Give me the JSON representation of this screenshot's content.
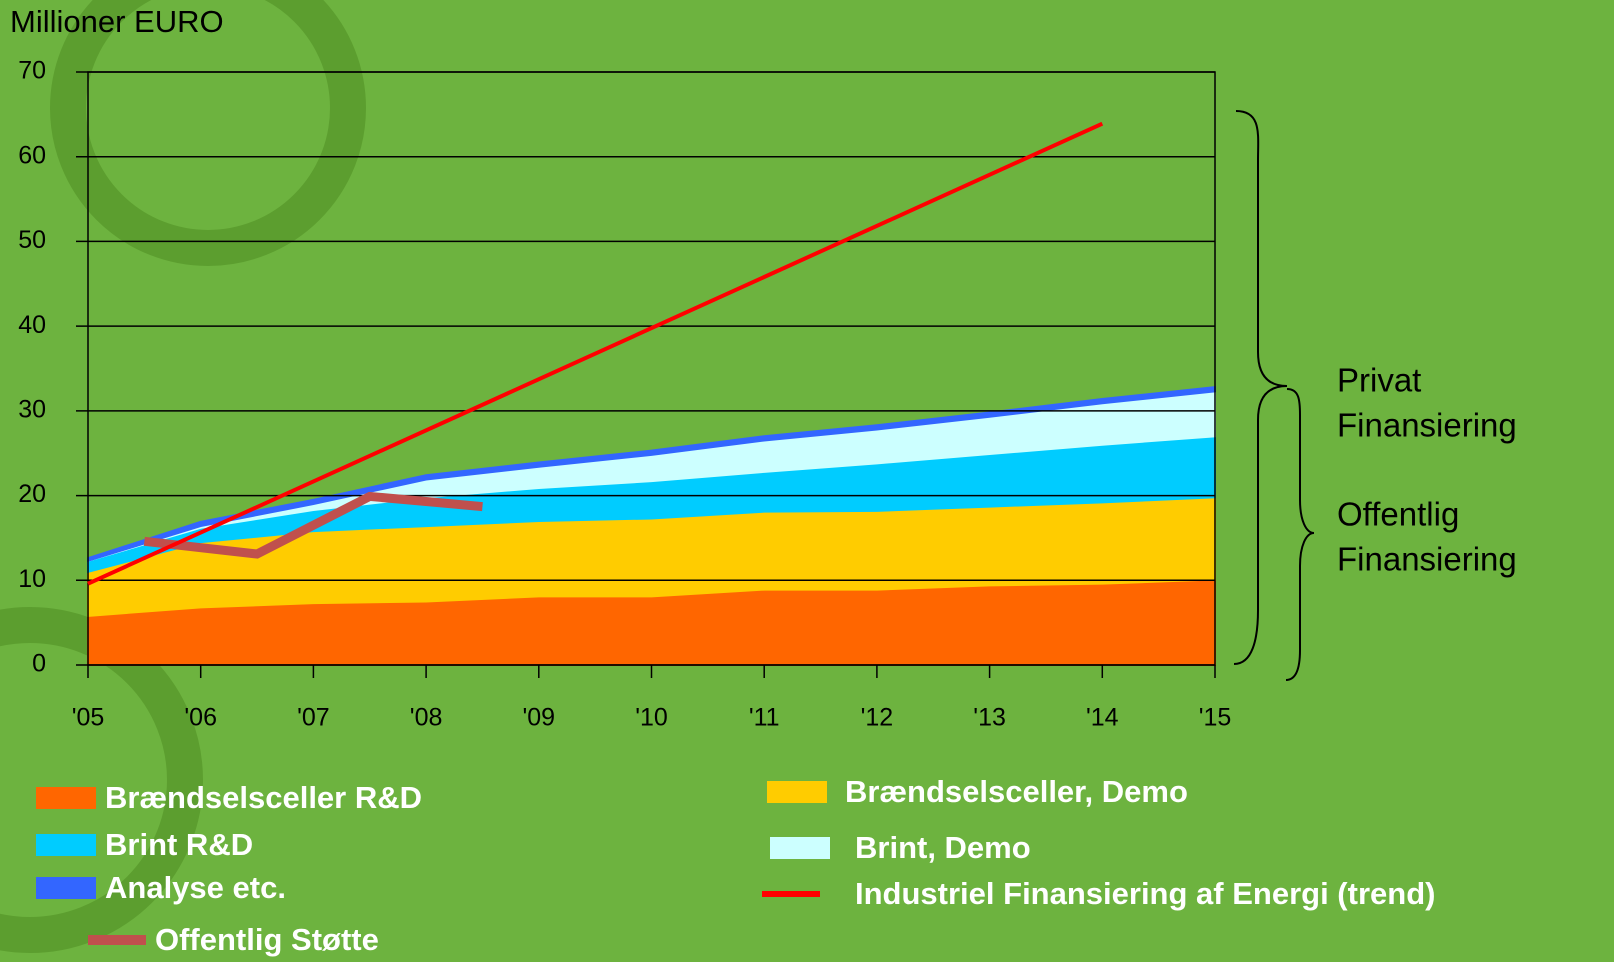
{
  "chart_data": {
    "type": "area",
    "y_label": "Millioner EURO",
    "stacked": true,
    "xlim": [
      2005,
      2015
    ],
    "xticks": [
      {
        "value": 2005,
        "label": "'05"
      },
      {
        "value": 2006,
        "label": "'06"
      },
      {
        "value": 2007,
        "label": "'07"
      },
      {
        "value": 2008,
        "label": "'08"
      },
      {
        "value": 2009,
        "label": "'09"
      },
      {
        "value": 2010,
        "label": "'10"
      },
      {
        "value": 2011,
        "label": "'11"
      },
      {
        "value": 2012,
        "label": "'12"
      },
      {
        "value": 2013,
        "label": "'13"
      },
      {
        "value": 2014,
        "label": "'14"
      },
      {
        "value": 2015,
        "label": "'15"
      }
    ],
    "ylim": [
      0,
      70
    ],
    "yticks": [
      0,
      10,
      20,
      30,
      40,
      50,
      60,
      70
    ],
    "grid": true,
    "x": [
      2005,
      2006,
      2007,
      2008,
      2009,
      2010,
      2011,
      2012,
      2013,
      2014,
      2015
    ],
    "series": [
      {
        "name": "Brændselsceller R&D",
        "type": "area",
        "color": "#ff6600",
        "values": [
          5.8,
          6.8,
          7.3,
          7.5,
          8.1,
          8.1,
          8.9,
          8.9,
          9.4,
          9.6,
          10.1
        ]
      },
      {
        "name": "Brændselsceller, Demo",
        "type": "area",
        "color": "#ffcc00",
        "values": [
          5.2,
          7.7,
          8.5,
          8.9,
          8.9,
          9.2,
          9.2,
          9.3,
          9.3,
          9.6,
          9.7
        ]
      },
      {
        "name": "Brint R&D",
        "type": "area",
        "color": "#00ccff",
        "values": [
          1.3,
          1.7,
          2.5,
          3.4,
          3.9,
          4.4,
          4.7,
          5.6,
          6.2,
          6.8,
          7.2
        ]
      },
      {
        "name": "Brint, Demo",
        "type": "area",
        "color": "#ccffff",
        "values": [
          0,
          0.2,
          0.7,
          2.1,
          2.5,
          3.1,
          3.7,
          4,
          4.4,
          4.9,
          5.3
        ]
      },
      {
        "name": "Analyse etc.",
        "type": "area",
        "color": "#3366ff",
        "values": [
          0.3,
          0.5,
          0.5,
          0.5,
          0.5,
          0.5,
          0.5,
          0.5,
          0.5,
          0.5,
          0.5
        ]
      },
      {
        "name": "Offentlig Støtte",
        "type": "line",
        "color": "#c0504d",
        "x": [
          2005.5,
          2006.5,
          2007.5,
          2008.5
        ],
        "values": [
          14.6,
          13.1,
          19.9,
          18.7
        ]
      },
      {
        "name": "Industriel Finansiering af Energi (trend)",
        "type": "line",
        "color": "#ff0000",
        "x": [
          2005,
          2014
        ],
        "values": [
          9.6,
          63.9
        ]
      }
    ],
    "annotations": [
      {
        "lines": [
          "Privat",
          "Finansiering"
        ]
      },
      {
        "lines": [
          "Offentlig",
          "Finansiering"
        ]
      }
    ]
  }
}
